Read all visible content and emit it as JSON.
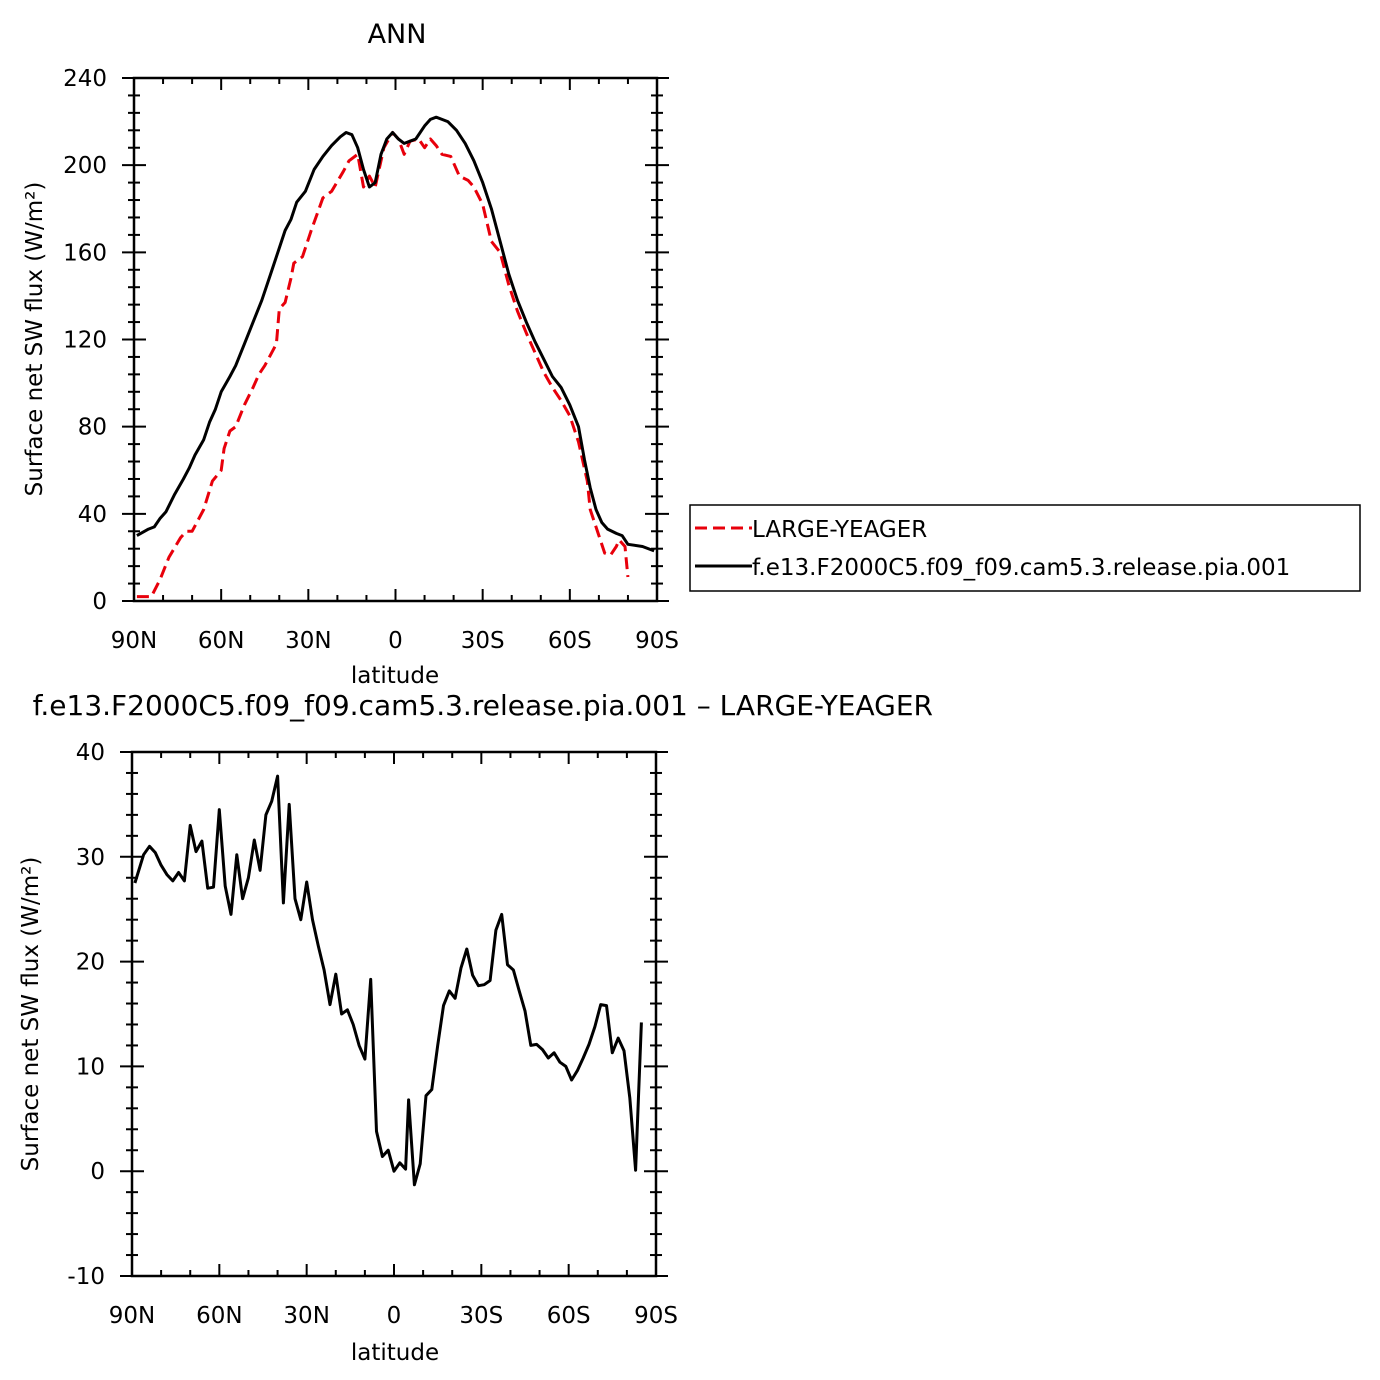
{
  "chart_data": [
    {
      "type": "line",
      "title": "ANN",
      "xlabel": "latitude",
      "ylabel": "Surface net SW flux (W/m²)",
      "xlim": [
        -90,
        90
      ],
      "x_direction": "north-to-south",
      "x_ticks": [
        -90,
        -60,
        -30,
        0,
        30,
        60,
        90
      ],
      "x_tick_labels": [
        "90N",
        "60N",
        "30N",
        "0",
        "30S",
        "60S",
        "90S"
      ],
      "ylim": [
        0,
        240
      ],
      "y_ticks": [
        0,
        40,
        80,
        120,
        160,
        200,
        240
      ],
      "y_tick_labels": [
        "0",
        "40",
        "80",
        "120",
        "160",
        "200",
        "240"
      ],
      "grid": false,
      "legend": "right",
      "series": [
        {
          "name": "LARGE-YEAGER",
          "color": "#e8000b",
          "dash": "dashed",
          "points": [
            [
              -89,
              2
            ],
            [
              -84,
              2
            ],
            [
              -81,
              10
            ],
            [
              -78,
              20
            ],
            [
              -74,
              29
            ],
            [
              -72,
              32
            ],
            [
              -70,
              32
            ],
            [
              -66,
              42
            ],
            [
              -63,
              55
            ],
            [
              -60,
              60
            ],
            [
              -59,
              70
            ],
            [
              -57,
              78
            ],
            [
              -55,
              80
            ],
            [
              -52,
              90
            ],
            [
              -49,
              98
            ],
            [
              -47,
              104
            ],
            [
              -45,
              108
            ],
            [
              -41,
              118
            ],
            [
              -40,
              134
            ],
            [
              -38,
              137
            ],
            [
              -36,
              148
            ],
            [
              -35,
              155
            ],
            [
              -32,
              158
            ],
            [
              -29,
              170
            ],
            [
              -25,
              185
            ],
            [
              -22,
              188
            ],
            [
              -18,
              197
            ],
            [
              -16,
              202
            ],
            [
              -13,
              205
            ],
            [
              -11,
              190
            ],
            [
              -9,
              195
            ],
            [
              -7,
              190
            ],
            [
              -4,
              208
            ],
            [
              -1,
              215
            ],
            [
              1,
              212
            ],
            [
              3,
              205
            ],
            [
              5,
              211
            ],
            [
              8,
              212
            ],
            [
              10,
              208
            ],
            [
              12,
              212
            ],
            [
              14,
              209
            ],
            [
              16,
              205
            ],
            [
              19,
              204
            ],
            [
              22,
              195
            ],
            [
              25,
              193
            ],
            [
              27,
              190
            ],
            [
              30,
              182
            ],
            [
              33,
              165
            ],
            [
              36,
              160
            ],
            [
              39,
              145
            ],
            [
              42,
              133
            ],
            [
              45,
              123
            ],
            [
              48,
              114
            ],
            [
              51,
              105
            ],
            [
              54,
              98
            ],
            [
              57,
              92
            ],
            [
              60,
              85
            ],
            [
              63,
              73
            ],
            [
              66,
              55
            ],
            [
              67,
              42
            ],
            [
              70,
              30
            ],
            [
              72,
              22
            ],
            [
              74,
              21
            ],
            [
              76,
              25
            ],
            [
              77,
              28
            ],
            [
              79,
              25
            ],
            [
              80,
              11
            ]
          ]
        },
        {
          "name": "f.e13.F2000C5.f09_f09.cam5.3.release.pia.001",
          "color": "#000000",
          "dash": "solid",
          "points": [
            [
              -89,
              30
            ],
            [
              -85,
              33
            ],
            [
              -83,
              34
            ],
            [
              -81,
              38
            ],
            [
              -79,
              41
            ],
            [
              -76,
              49
            ],
            [
              -73,
              56
            ],
            [
              -71,
              61
            ],
            [
              -69,
              67
            ],
            [
              -66,
              74
            ],
            [
              -64,
              82
            ],
            [
              -62,
              88
            ],
            [
              -60,
              96
            ],
            [
              -57,
              103
            ],
            [
              -55,
              108
            ],
            [
              -52,
              118
            ],
            [
              -49,
              128
            ],
            [
              -46,
              138
            ],
            [
              -43,
              150
            ],
            [
              -40,
              162
            ],
            [
              -38,
              170
            ],
            [
              -36,
              175
            ],
            [
              -34,
              183
            ],
            [
              -31,
              188
            ],
            [
              -28,
              198
            ],
            [
              -25,
              204
            ],
            [
              -22,
              209
            ],
            [
              -19,
              213
            ],
            [
              -17,
              215
            ],
            [
              -15,
              214
            ],
            [
              -13,
              208
            ],
            [
              -11,
              198
            ],
            [
              -9,
              190
            ],
            [
              -7,
              192
            ],
            [
              -5,
              205
            ],
            [
              -3,
              212
            ],
            [
              -1,
              215
            ],
            [
              1,
              212
            ],
            [
              3,
              210
            ],
            [
              5,
              211
            ],
            [
              7,
              212
            ],
            [
              10,
              218
            ],
            [
              12,
              221
            ],
            [
              14,
              222
            ],
            [
              16,
              221
            ],
            [
              18,
              220
            ],
            [
              21,
              216
            ],
            [
              24,
              210
            ],
            [
              27,
              202
            ],
            [
              30,
              192
            ],
            [
              33,
              180
            ],
            [
              36,
              165
            ],
            [
              39,
              150
            ],
            [
              42,
              138
            ],
            [
              45,
              128
            ],
            [
              48,
              119
            ],
            [
              51,
              111
            ],
            [
              54,
              103
            ],
            [
              57,
              98
            ],
            [
              60,
              90
            ],
            [
              63,
              80
            ],
            [
              65,
              65
            ],
            [
              67,
              52
            ],
            [
              69,
              42
            ],
            [
              71,
              36
            ],
            [
              73,
              33
            ],
            [
              76,
              31
            ],
            [
              78,
              30
            ],
            [
              80,
              26
            ],
            [
              85,
              25
            ],
            [
              89,
              23
            ]
          ]
        }
      ]
    },
    {
      "type": "line",
      "title": "f.e13.F2000C5.f09_f09.cam5.3.release.pia.001 – LARGE-YEAGER",
      "xlabel": "latitude",
      "ylabel": "Surface net SW flux (W/m²)",
      "xlim": [
        -90,
        90
      ],
      "x_direction": "north-to-south",
      "x_ticks": [
        -90,
        -60,
        -30,
        0,
        30,
        60,
        90
      ],
      "x_tick_labels": [
        "90N",
        "60N",
        "30N",
        "0",
        "30S",
        "60S",
        "90S"
      ],
      "ylim": [
        -10,
        40
      ],
      "y_ticks": [
        -10,
        0,
        10,
        20,
        30,
        40
      ],
      "y_tick_labels": [
        "-10",
        "0",
        "10",
        "20",
        "30",
        "40"
      ],
      "grid": false,
      "series": [
        {
          "color": "#000000",
          "dash": "solid",
          "points": [
            [
              -89,
              27.5
            ],
            [
              -86,
              30.2
            ],
            [
              -84,
              31
            ],
            [
              -82,
              30.4
            ],
            [
              -80,
              29.2
            ],
            [
              -78,
              28.3
            ],
            [
              -76,
              27.7
            ],
            [
              -74,
              28.5
            ],
            [
              -72,
              27.7
            ],
            [
              -70,
              33
            ],
            [
              -68,
              30.5
            ],
            [
              -66,
              31.5
            ],
            [
              -64,
              27
            ],
            [
              -62,
              27.1
            ],
            [
              -60,
              34.5
            ],
            [
              -58,
              27.2
            ],
            [
              -56,
              24.5
            ],
            [
              -54,
              30.2
            ],
            [
              -52,
              26
            ],
            [
              -50,
              28
            ],
            [
              -48,
              31.6
            ],
            [
              -46,
              28.7
            ],
            [
              -44,
              34
            ],
            [
              -42,
              35.3
            ],
            [
              -40,
              37.7
            ],
            [
              -38,
              25.6
            ],
            [
              -36,
              35
            ],
            [
              -34,
              26
            ],
            [
              -32,
              24
            ],
            [
              -30,
              27.6
            ],
            [
              -28,
              24
            ],
            [
              -26,
              21.5
            ],
            [
              -24,
              19.2
            ],
            [
              -22,
              15.9
            ],
            [
              -20,
              18.8
            ],
            [
              -18,
              15
            ],
            [
              -16,
              15.4
            ],
            [
              -14,
              14
            ],
            [
              -12,
              12
            ],
            [
              -10,
              10.7
            ],
            [
              -8,
              18.3
            ],
            [
              -6,
              3.8
            ],
            [
              -4,
              1.4
            ],
            [
              -2,
              2
            ],
            [
              0,
              0
            ],
            [
              2,
              0.8
            ],
            [
              4,
              0.2
            ],
            [
              5,
              6.8
            ],
            [
              7,
              -1.3
            ],
            [
              9,
              0.7
            ],
            [
              11,
              7.2
            ],
            [
              13,
              7.8
            ],
            [
              15,
              12
            ],
            [
              17,
              15.8
            ],
            [
              19,
              17.2
            ],
            [
              21,
              16.5
            ],
            [
              23,
              19.4
            ],
            [
              25,
              21.2
            ],
            [
              27,
              18.7
            ],
            [
              29,
              17.7
            ],
            [
              31,
              17.8
            ],
            [
              33,
              18.2
            ],
            [
              35,
              23
            ],
            [
              37,
              24.5
            ],
            [
              39,
              19.7
            ],
            [
              41,
              19.2
            ],
            [
              43,
              17.2
            ],
            [
              45,
              15.3
            ],
            [
              47,
              12
            ],
            [
              49,
              12.1
            ],
            [
              51,
              11.6
            ],
            [
              53,
              10.8
            ],
            [
              55,
              11.3
            ],
            [
              57,
              10.4
            ],
            [
              59,
              10
            ],
            [
              61,
              8.7
            ],
            [
              63,
              9.6
            ],
            [
              65,
              10.8
            ],
            [
              67,
              12.1
            ],
            [
              69,
              13.8
            ],
            [
              71,
              15.9
            ],
            [
              73,
              15.8
            ],
            [
              75,
              11.3
            ],
            [
              77,
              12.7
            ],
            [
              79,
              11.5
            ],
            [
              81,
              7
            ],
            [
              83,
              0.1
            ],
            [
              85,
              14.2
            ]
          ]
        }
      ]
    }
  ]
}
